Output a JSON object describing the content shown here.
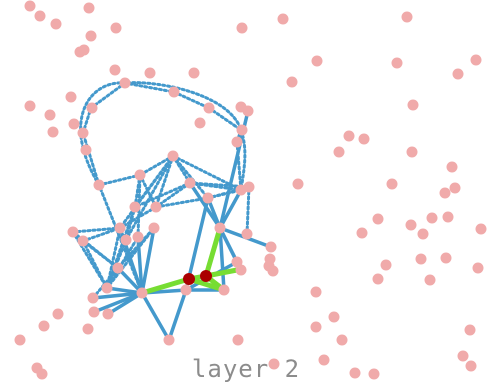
{
  "layer_label": "layer 2",
  "colors": {
    "background": "#ffffff",
    "node": "#f0aaaa",
    "edge_solid": "#4499cc",
    "edge_dotted": "#4499cc",
    "edge_highlight": "#77dd33",
    "node_selected": "#aa0000",
    "label": "#8c8c8c"
  }
}
